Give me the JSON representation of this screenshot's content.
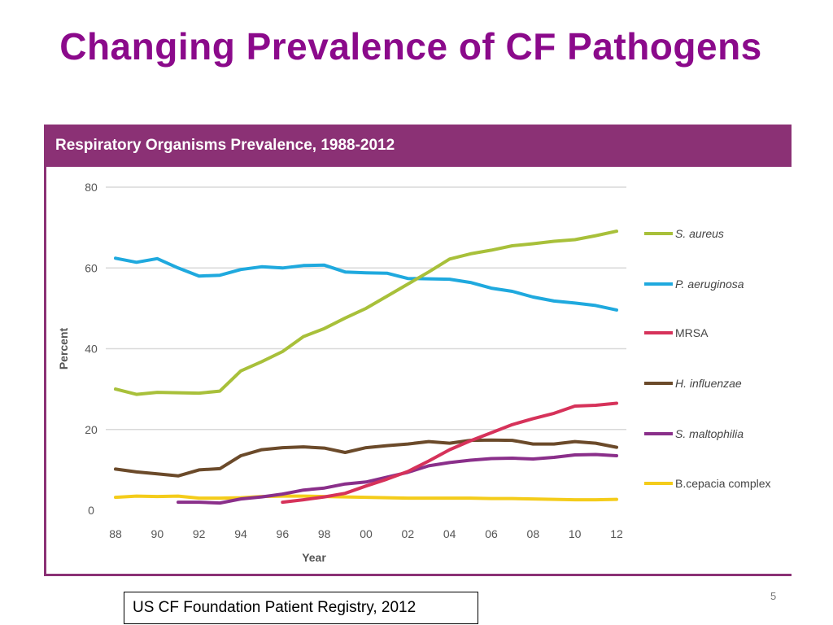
{
  "slide": {
    "title": "Changing Prevalence of CF Pathogens",
    "source": "US CF Foundation Patient Registry, 2012",
    "page_number": "5"
  },
  "colors": {
    "title": "#8b0a8b",
    "figure_header": "#8b3175"
  },
  "chart_data": {
    "type": "line",
    "title": "Respiratory Organisms Prevalence, 1988-2012",
    "xlabel": "Year",
    "ylabel": "Percent",
    "x": [
      1988,
      1989,
      1990,
      1991,
      1992,
      1993,
      1994,
      1995,
      1996,
      1997,
      1998,
      1999,
      2000,
      2001,
      2002,
      2003,
      2004,
      2005,
      2006,
      2007,
      2008,
      2009,
      2010,
      2011,
      2012
    ],
    "x_ticks": [
      1988,
      1990,
      1992,
      1994,
      1996,
      1998,
      2000,
      2002,
      2004,
      2006,
      2008,
      2010,
      2012
    ],
    "x_tick_labels": [
      "88",
      "90",
      "92",
      "94",
      "96",
      "98",
      "00",
      "02",
      "04",
      "06",
      "08",
      "10",
      "12"
    ],
    "y_ticks": [
      0,
      20,
      40,
      60,
      80
    ],
    "y_tick_labels": [
      "0",
      "20",
      "40",
      "60",
      "80"
    ],
    "xlim": [
      1988,
      2012
    ],
    "ylim": [
      0,
      80
    ],
    "grid": "horizontal",
    "legend_position": "right",
    "series": [
      {
        "name": "S. aureus",
        "color": "#a8c03a",
        "values": [
          30,
          28.7,
          29.2,
          29.1,
          29,
          29.5,
          34.5,
          36.8,
          39.3,
          43,
          45,
          47.6,
          50,
          53,
          56,
          59,
          62.2,
          63.5,
          64.4,
          65.5,
          66,
          66.6,
          67,
          68,
          69.1
        ]
      },
      {
        "name": "P. aeruginosa",
        "color": "#1fa9de",
        "values": [
          62.4,
          61.4,
          62.3,
          60,
          58,
          58.2,
          59.6,
          60.3,
          60,
          60.6,
          60.7,
          59,
          58.8,
          58.7,
          57.4,
          57.3,
          57.2,
          56.4,
          55,
          54.2,
          52.8,
          51.8,
          51.3,
          50.7,
          49.6
        ]
      },
      {
        "name": "MRSA",
        "color": "#d6325a",
        "values": [
          null,
          null,
          null,
          null,
          null,
          null,
          null,
          null,
          2,
          2.6,
          3.3,
          4.2,
          6,
          7.7,
          9.6,
          12.2,
          15,
          17.2,
          19.2,
          21.2,
          22.7,
          24,
          25.8,
          26,
          26.5
        ]
      },
      {
        "name": "H. influenzae",
        "color": "#6b4a2a",
        "values": [
          10.2,
          9.5,
          9,
          8.5,
          10,
          10.3,
          13.5,
          15,
          15.5,
          15.7,
          15.4,
          14.3,
          15.5,
          16,
          16.4,
          17,
          16.6,
          17.3,
          17.4,
          17.3,
          16.4,
          16.4,
          17,
          16.6,
          15.6
        ]
      },
      {
        "name": "S. maltophilia",
        "color": "#8a2f8a",
        "values": [
          null,
          null,
          null,
          2,
          2,
          1.8,
          2.8,
          3.3,
          4,
          5,
          5.5,
          6.5,
          7,
          8.2,
          9.4,
          11,
          11.8,
          12.4,
          12.8,
          12.9,
          12.7,
          13.1,
          13.7,
          13.8,
          13.5
        ]
      },
      {
        "name": "B.cepacia complex",
        "color": "#f4cc1a",
        "values": [
          3.2,
          3.5,
          3.4,
          3.5,
          3,
          3,
          3.1,
          3.4,
          3.5,
          3.5,
          3.4,
          3.3,
          3.2,
          3.1,
          3,
          3,
          3,
          3,
          2.9,
          2.9,
          2.8,
          2.7,
          2.6,
          2.6,
          2.7
        ]
      }
    ]
  }
}
